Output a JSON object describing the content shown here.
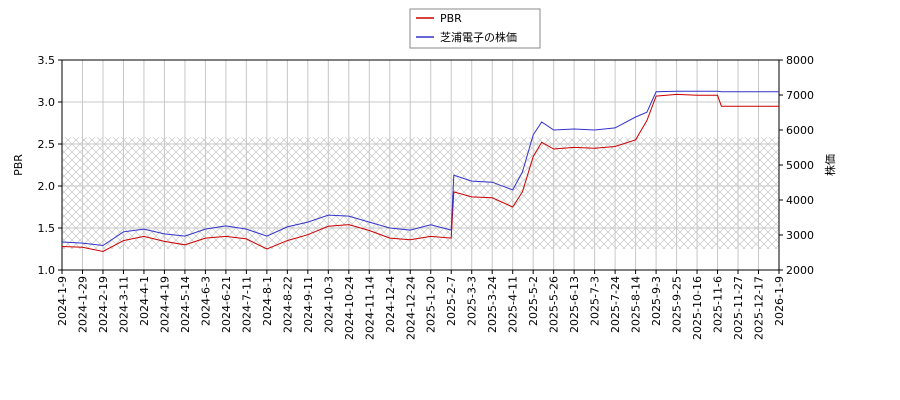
{
  "chart_data": {
    "type": "line",
    "x": [
      "2024-1-9",
      "2024-1-29",
      "2024-2-19",
      "2024-3-11",
      "2024-4-1",
      "2024-4-19",
      "2024-5-14",
      "2024-6-3",
      "2024-6-21",
      "2024-7-11",
      "2024-8-1",
      "2024-8-22",
      "2024-9-11",
      "2024-10-3",
      "2024-10-24",
      "2024-11-14",
      "2024-12-4",
      "2024-12-24",
      "2025-1-20",
      "2025-2-7",
      "2025-2-10",
      "2025-3-3",
      "2025-3-24",
      "2025-4-11",
      "2025-4-21",
      "2025-5-2",
      "2025-5-12",
      "2025-5-26",
      "2025-6-13",
      "2025-7-3",
      "2025-7-24",
      "2025-8-14",
      "2025-8-25",
      "2025-9-3",
      "2025-9-25",
      "2025-10-16",
      "2025-11-6",
      "2025-11-10",
      "2025-11-27",
      "2025-12-17",
      "2026-1-9"
    ],
    "series": [
      {
        "name": "PBR",
        "color": "#cc0000",
        "axis": "y",
        "values": [
          1.28,
          1.27,
          1.22,
          1.35,
          1.4,
          1.34,
          1.3,
          1.38,
          1.4,
          1.37,
          1.25,
          1.35,
          1.42,
          1.52,
          1.54,
          1.47,
          1.38,
          1.36,
          1.4,
          1.38,
          1.93,
          1.87,
          1.86,
          1.75,
          1.93,
          2.35,
          2.52,
          2.44,
          2.46,
          2.45,
          2.47,
          2.55,
          2.78,
          3.07,
          3.09,
          3.08,
          3.08,
          2.95,
          2.95,
          2.95,
          2.95
        ]
      },
      {
        "name": "芝浦電子の株価",
        "color": "#3333cc",
        "axis": "y2",
        "values": [
          2800,
          2770,
          2700,
          3090,
          3170,
          3030,
          2970,
          3170,
          3260,
          3170,
          2970,
          3230,
          3370,
          3570,
          3540,
          3370,
          3200,
          3140,
          3290,
          3140,
          4710,
          4540,
          4510,
          4290,
          4800,
          5860,
          6230,
          6000,
          6030,
          6000,
          6060,
          6370,
          6510,
          7090,
          7110,
          7110,
          7110,
          7090,
          7090,
          7090,
          7090
        ]
      }
    ],
    "xlim": [
      "2024-1-9",
      "2026-1-9"
    ],
    "xticks": [
      "2024-1-9",
      "2024-1-29",
      "2024-2-19",
      "2024-3-11",
      "2024-4-1",
      "2024-4-19",
      "2024-5-14",
      "2024-6-3",
      "2024-6-21",
      "2024-7-11",
      "2024-8-1",
      "2024-8-22",
      "2024-9-11",
      "2024-10-3",
      "2024-10-24",
      "2024-11-14",
      "2024-12-4",
      "2024-12-24",
      "2025-1-20",
      "2025-2-7",
      "2025-3-3",
      "2025-3-24",
      "2025-4-11",
      "2025-5-2",
      "2025-5-26",
      "2025-6-13",
      "2025-7-3",
      "2025-7-24",
      "2025-8-14",
      "2025-9-3",
      "2025-9-25",
      "2025-10-16",
      "2025-11-6",
      "2025-11-27",
      "2025-12-17",
      "2026-1-9"
    ],
    "ylabel": "PBR",
    "ylim": [
      1.0,
      3.5
    ],
    "yticks": [
      {
        "value": 1.0,
        "label": "1.0"
      },
      1.5,
      {
        "value": 2.0,
        "label": "2.0"
      },
      2.5,
      {
        "value": 3.0,
        "label": "3.0"
      },
      3.5
    ],
    "y2label": "株価",
    "y2lim": [
      2000,
      8000
    ],
    "y2ticks": [
      2000,
      3000,
      4000,
      5000,
      6000,
      7000,
      8000
    ],
    "band": [
      1.25,
      2.58
    ],
    "grid": true,
    "legend": "top"
  }
}
